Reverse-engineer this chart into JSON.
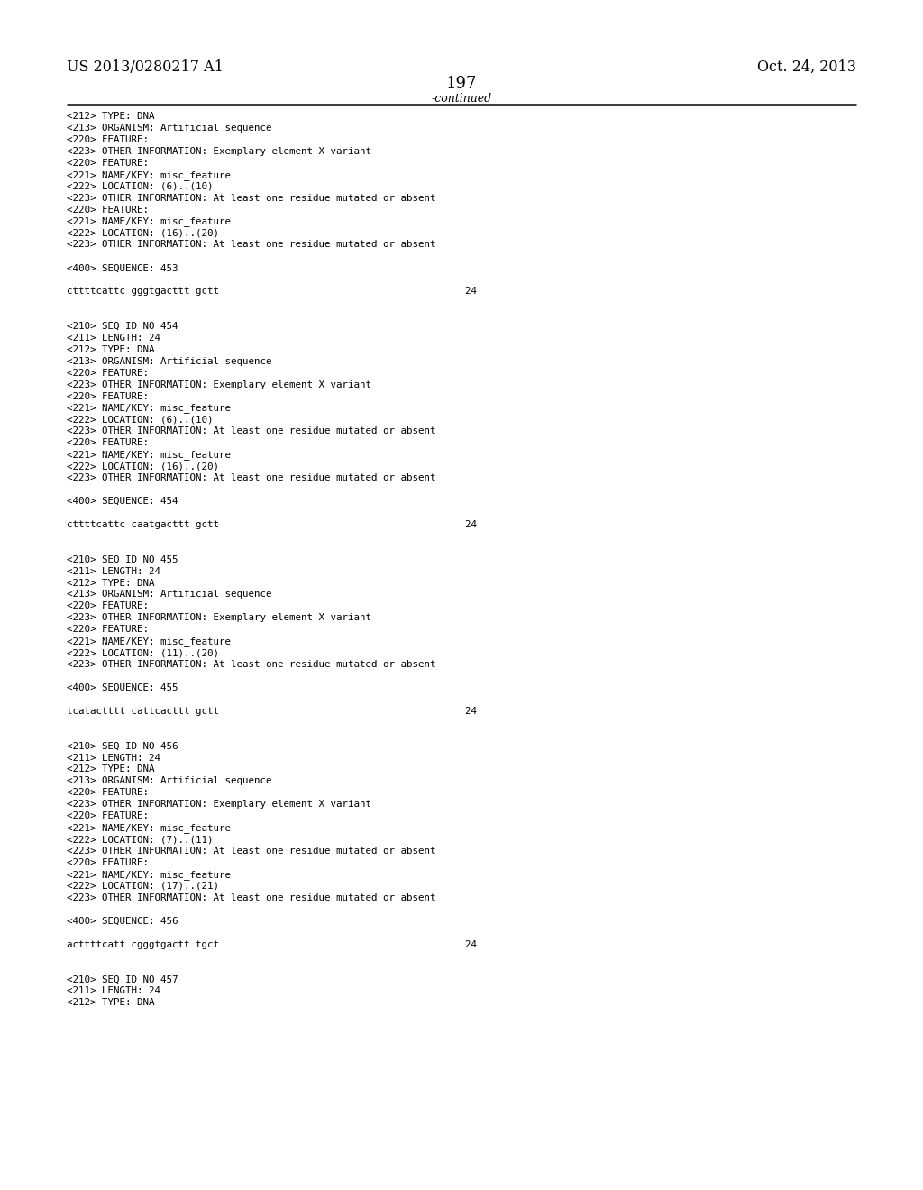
{
  "background_color": "#ffffff",
  "header_left": "US 2013/0280217 A1",
  "header_right": "Oct. 24, 2013",
  "page_number": "197",
  "continued_label": "-continued",
  "header_font": "DejaVu Serif",
  "mono_font": "DejaVu Sans Mono",
  "content_font_size": 7.8,
  "header_font_size": 11.5,
  "page_num_font_size": 13,
  "content": [
    "<212> TYPE: DNA",
    "<213> ORGANISM: Artificial sequence",
    "<220> FEATURE:",
    "<223> OTHER INFORMATION: Exemplary element X variant",
    "<220> FEATURE:",
    "<221> NAME/KEY: misc_feature",
    "<222> LOCATION: (6)..(10)",
    "<223> OTHER INFORMATION: At least one residue mutated or absent",
    "<220> FEATURE:",
    "<221> NAME/KEY: misc_feature",
    "<222> LOCATION: (16)..(20)",
    "<223> OTHER INFORMATION: At least one residue mutated or absent",
    "",
    "<400> SEQUENCE: 453",
    "",
    "cttttcattc gggtgacttt gctt                                          24",
    "",
    "",
    "<210> SEQ ID NO 454",
    "<211> LENGTH: 24",
    "<212> TYPE: DNA",
    "<213> ORGANISM: Artificial sequence",
    "<220> FEATURE:",
    "<223> OTHER INFORMATION: Exemplary element X variant",
    "<220> FEATURE:",
    "<221> NAME/KEY: misc_feature",
    "<222> LOCATION: (6)..(10)",
    "<223> OTHER INFORMATION: At least one residue mutated or absent",
    "<220> FEATURE:",
    "<221> NAME/KEY: misc_feature",
    "<222> LOCATION: (16)..(20)",
    "<223> OTHER INFORMATION: At least one residue mutated or absent",
    "",
    "<400> SEQUENCE: 454",
    "",
    "cttttcattc caatgacttt gctt                                          24",
    "",
    "",
    "<210> SEQ ID NO 455",
    "<211> LENGTH: 24",
    "<212> TYPE: DNA",
    "<213> ORGANISM: Artificial sequence",
    "<220> FEATURE:",
    "<223> OTHER INFORMATION: Exemplary element X variant",
    "<220> FEATURE:",
    "<221> NAME/KEY: misc_feature",
    "<222> LOCATION: (11)..(20)",
    "<223> OTHER INFORMATION: At least one residue mutated or absent",
    "",
    "<400> SEQUENCE: 455",
    "",
    "tcatactttt cattcacttt gctt                                          24",
    "",
    "",
    "<210> SEQ ID NO 456",
    "<211> LENGTH: 24",
    "<212> TYPE: DNA",
    "<213> ORGANISM: Artificial sequence",
    "<220> FEATURE:",
    "<223> OTHER INFORMATION: Exemplary element X variant",
    "<220> FEATURE:",
    "<221> NAME/KEY: misc_feature",
    "<222> LOCATION: (7)..(11)",
    "<223> OTHER INFORMATION: At least one residue mutated or absent",
    "<220> FEATURE:",
    "<221> NAME/KEY: misc_feature",
    "<222> LOCATION: (17)..(21)",
    "<223> OTHER INFORMATION: At least one residue mutated or absent",
    "",
    "<400> SEQUENCE: 456",
    "",
    "acttttcatt cgggtgactt tgct                                          24",
    "",
    "",
    "<210> SEQ ID NO 457",
    "<211> LENGTH: 24",
    "<212> TYPE: DNA"
  ]
}
